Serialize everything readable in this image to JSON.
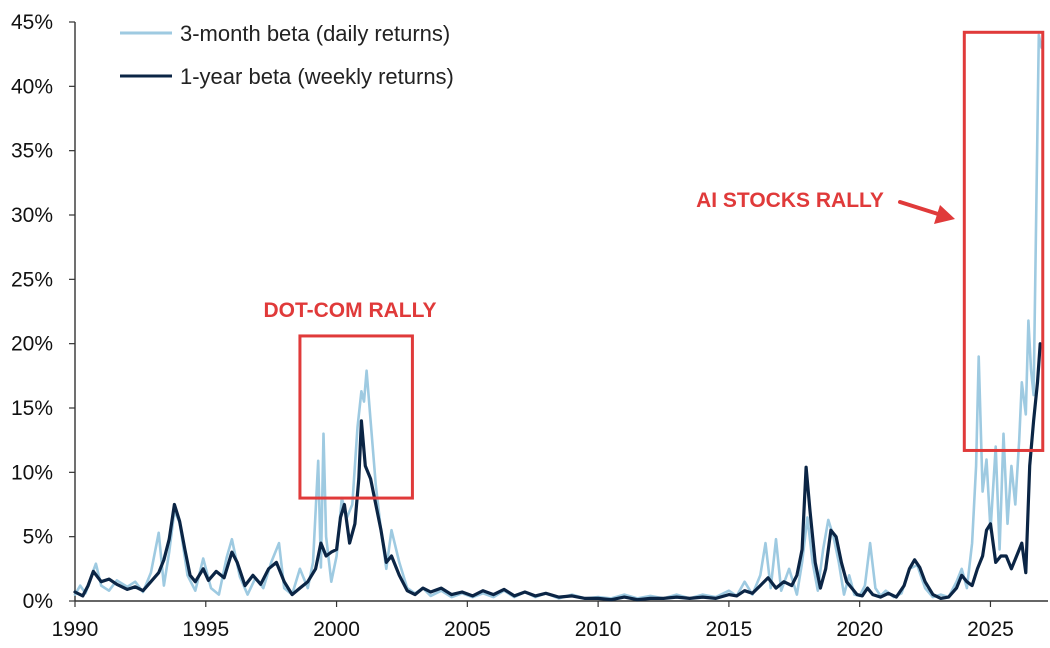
{
  "chart_data": {
    "type": "line",
    "title": "",
    "xlabel": "",
    "ylabel": "",
    "xlim": [
      1990,
      2027.2
    ],
    "ylim": [
      0,
      45
    ],
    "x_ticks": [
      1990,
      1995,
      2000,
      2005,
      2010,
      2015,
      2020,
      2025
    ],
    "x_tick_labels": [
      "1990",
      "1995",
      "2000",
      "2005",
      "2010",
      "2015",
      "2020",
      "2025"
    ],
    "y_ticks": [
      0,
      5,
      10,
      15,
      20,
      25,
      30,
      35,
      40,
      45
    ],
    "y_tick_labels": [
      "0%",
      "5%",
      "10%",
      "15%",
      "20%",
      "25%",
      "30%",
      "35%",
      "40%",
      "45%"
    ],
    "grid": false,
    "legend_position": "top-left",
    "series": [
      {
        "name": "3-month beta (daily returns)",
        "color": "#9ecae1",
        "points": [
          [
            1990.0,
            0.5
          ],
          [
            1990.2,
            1.2
          ],
          [
            1990.4,
            0.6
          ],
          [
            1990.6,
            1.8
          ],
          [
            1990.8,
            2.9
          ],
          [
            1991.0,
            1.2
          ],
          [
            1991.3,
            0.8
          ],
          [
            1991.6,
            1.6
          ],
          [
            1992.0,
            1.1
          ],
          [
            1992.3,
            1.5
          ],
          [
            1992.6,
            0.7
          ],
          [
            1992.9,
            2.2
          ],
          [
            1993.2,
            5.3
          ],
          [
            1993.4,
            1.2
          ],
          [
            1993.6,
            3.8
          ],
          [
            1993.8,
            7.0
          ],
          [
            1994.0,
            6.1
          ],
          [
            1994.3,
            2.0
          ],
          [
            1994.6,
            0.8
          ],
          [
            1994.9,
            3.3
          ],
          [
            1995.2,
            1.0
          ],
          [
            1995.5,
            0.5
          ],
          [
            1995.8,
            3.4
          ],
          [
            1996.0,
            4.8
          ],
          [
            1996.3,
            1.9
          ],
          [
            1996.6,
            0.5
          ],
          [
            1996.9,
            1.8
          ],
          [
            1997.2,
            1.0
          ],
          [
            1997.5,
            3.0
          ],
          [
            1997.8,
            4.5
          ],
          [
            1998.0,
            1.0
          ],
          [
            1998.3,
            0.5
          ],
          [
            1998.6,
            2.5
          ],
          [
            1998.9,
            1.0
          ],
          [
            1999.1,
            3.0
          ],
          [
            1999.3,
            10.9
          ],
          [
            1999.4,
            2.6
          ],
          [
            1999.5,
            13.0
          ],
          [
            1999.6,
            5.0
          ],
          [
            1999.8,
            1.5
          ],
          [
            2000.0,
            3.5
          ],
          [
            2000.2,
            8.0
          ],
          [
            2000.4,
            6.5
          ],
          [
            2000.6,
            7.5
          ],
          [
            2000.8,
            13.5
          ],
          [
            2000.95,
            16.3
          ],
          [
            2001.05,
            15.5
          ],
          [
            2001.15,
            17.9
          ],
          [
            2001.3,
            14.0
          ],
          [
            2001.5,
            9.0
          ],
          [
            2001.7,
            5.5
          ],
          [
            2001.9,
            2.5
          ],
          [
            2002.1,
            5.5
          ],
          [
            2002.4,
            3.0
          ],
          [
            2002.7,
            1.0
          ],
          [
            2003.0,
            0.6
          ],
          [
            2003.3,
            1.0
          ],
          [
            2003.6,
            0.4
          ],
          [
            2004.0,
            0.8
          ],
          [
            2004.4,
            0.3
          ],
          [
            2004.8,
            0.6
          ],
          [
            2005.2,
            0.3
          ],
          [
            2005.6,
            0.6
          ],
          [
            2006.0,
            0.3
          ],
          [
            2006.4,
            0.8
          ],
          [
            2006.8,
            0.3
          ],
          [
            2007.2,
            0.7
          ],
          [
            2007.6,
            0.3
          ],
          [
            2008.0,
            0.6
          ],
          [
            2008.5,
            0.2
          ],
          [
            2009.0,
            0.5
          ],
          [
            2009.5,
            0.2
          ],
          [
            2010.0,
            0.3
          ],
          [
            2010.5,
            0.2
          ],
          [
            2011.0,
            0.5
          ],
          [
            2011.5,
            0.2
          ],
          [
            2012.0,
            0.4
          ],
          [
            2012.5,
            0.2
          ],
          [
            2013.0,
            0.5
          ],
          [
            2013.5,
            0.2
          ],
          [
            2014.0,
            0.5
          ],
          [
            2014.5,
            0.3
          ],
          [
            2015.0,
            0.8
          ],
          [
            2015.3,
            0.4
          ],
          [
            2015.6,
            1.5
          ],
          [
            2015.9,
            0.5
          ],
          [
            2016.2,
            2.0
          ],
          [
            2016.4,
            4.5
          ],
          [
            2016.6,
            1.0
          ],
          [
            2016.8,
            4.8
          ],
          [
            2017.0,
            0.8
          ],
          [
            2017.3,
            2.5
          ],
          [
            2017.6,
            0.5
          ],
          [
            2017.8,
            3.0
          ],
          [
            2018.0,
            6.5
          ],
          [
            2018.2,
            3.0
          ],
          [
            2018.4,
            0.8
          ],
          [
            2018.6,
            4.0
          ],
          [
            2018.8,
            6.3
          ],
          [
            2019.0,
            5.0
          ],
          [
            2019.2,
            3.0
          ],
          [
            2019.4,
            0.5
          ],
          [
            2019.6,
            2.0
          ],
          [
            2019.8,
            0.5
          ],
          [
            2020.0,
            0.4
          ],
          [
            2020.2,
            1.2
          ],
          [
            2020.4,
            4.5
          ],
          [
            2020.6,
            1.0
          ],
          [
            2020.8,
            0.4
          ],
          [
            2021.0,
            0.8
          ],
          [
            2021.3,
            0.3
          ],
          [
            2021.6,
            0.6
          ],
          [
            2021.9,
            2.5
          ],
          [
            2022.2,
            2.8
          ],
          [
            2022.5,
            1.0
          ],
          [
            2022.8,
            0.3
          ],
          [
            2023.1,
            0.5
          ],
          [
            2023.4,
            0.3
          ],
          [
            2023.7,
            1.5
          ],
          [
            2023.9,
            2.5
          ],
          [
            2024.1,
            1.0
          ],
          [
            2024.3,
            4.5
          ],
          [
            2024.45,
            10.5
          ],
          [
            2024.55,
            19.0
          ],
          [
            2024.7,
            8.5
          ],
          [
            2024.85,
            11.0
          ],
          [
            2025.0,
            5.5
          ],
          [
            2025.2,
            12.0
          ],
          [
            2025.35,
            4.0
          ],
          [
            2025.5,
            13.0
          ],
          [
            2025.65,
            6.0
          ],
          [
            2025.8,
            10.5
          ],
          [
            2025.95,
            7.5
          ],
          [
            2026.1,
            12.5
          ],
          [
            2026.2,
            17.0
          ],
          [
            2026.35,
            14.5
          ],
          [
            2026.45,
            21.8
          ],
          [
            2026.55,
            18.0
          ],
          [
            2026.65,
            16.0
          ],
          [
            2026.75,
            30.0
          ],
          [
            2026.85,
            44.0
          ],
          [
            2026.95,
            43.0
          ]
        ]
      },
      {
        "name": "1-year beta (weekly returns)",
        "color": "#0b2545",
        "points": [
          [
            1990.0,
            0.7
          ],
          [
            1990.3,
            0.4
          ],
          [
            1990.5,
            1.2
          ],
          [
            1990.7,
            2.3
          ],
          [
            1991.0,
            1.5
          ],
          [
            1991.3,
            1.7
          ],
          [
            1991.6,
            1.3
          ],
          [
            1992.0,
            0.9
          ],
          [
            1992.3,
            1.1
          ],
          [
            1992.6,
            0.8
          ],
          [
            1992.9,
            1.5
          ],
          [
            1993.2,
            2.2
          ],
          [
            1993.4,
            3.2
          ],
          [
            1993.6,
            4.8
          ],
          [
            1993.8,
            7.5
          ],
          [
            1994.0,
            6.2
          ],
          [
            1994.2,
            4.0
          ],
          [
            1994.4,
            2.0
          ],
          [
            1994.6,
            1.5
          ],
          [
            1994.9,
            2.5
          ],
          [
            1995.1,
            1.6
          ],
          [
            1995.4,
            2.3
          ],
          [
            1995.7,
            1.8
          ],
          [
            1996.0,
            3.8
          ],
          [
            1996.2,
            3.0
          ],
          [
            1996.5,
            1.2
          ],
          [
            1996.8,
            2.0
          ],
          [
            1997.1,
            1.3
          ],
          [
            1997.4,
            2.5
          ],
          [
            1997.7,
            3.0
          ],
          [
            1998.0,
            1.5
          ],
          [
            1998.3,
            0.5
          ],
          [
            1998.6,
            1.0
          ],
          [
            1998.9,
            1.5
          ],
          [
            1999.2,
            2.5
          ],
          [
            1999.4,
            4.5
          ],
          [
            1999.6,
            3.5
          ],
          [
            1999.8,
            3.8
          ],
          [
            2000.0,
            4.0
          ],
          [
            2000.15,
            6.5
          ],
          [
            2000.3,
            7.5
          ],
          [
            2000.5,
            4.5
          ],
          [
            2000.7,
            6.0
          ],
          [
            2000.85,
            9.5
          ],
          [
            2000.95,
            14.0
          ],
          [
            2001.1,
            10.5
          ],
          [
            2001.3,
            9.5
          ],
          [
            2001.5,
            7.5
          ],
          [
            2001.7,
            5.5
          ],
          [
            2001.9,
            3.0
          ],
          [
            2002.1,
            3.5
          ],
          [
            2002.4,
            2.0
          ],
          [
            2002.7,
            0.8
          ],
          [
            2003.0,
            0.5
          ],
          [
            2003.3,
            1.0
          ],
          [
            2003.6,
            0.7
          ],
          [
            2004.0,
            1.0
          ],
          [
            2004.4,
            0.5
          ],
          [
            2004.8,
            0.7
          ],
          [
            2005.2,
            0.4
          ],
          [
            2005.6,
            0.8
          ],
          [
            2006.0,
            0.5
          ],
          [
            2006.4,
            0.9
          ],
          [
            2006.8,
            0.4
          ],
          [
            2007.2,
            0.7
          ],
          [
            2007.6,
            0.4
          ],
          [
            2008.0,
            0.6
          ],
          [
            2008.5,
            0.3
          ],
          [
            2009.0,
            0.4
          ],
          [
            2009.5,
            0.2
          ],
          [
            2010.0,
            0.2
          ],
          [
            2010.5,
            0.1
          ],
          [
            2011.0,
            0.3
          ],
          [
            2011.5,
            0.1
          ],
          [
            2012.0,
            0.2
          ],
          [
            2012.5,
            0.2
          ],
          [
            2013.0,
            0.3
          ],
          [
            2013.5,
            0.2
          ],
          [
            2014.0,
            0.3
          ],
          [
            2014.5,
            0.2
          ],
          [
            2015.0,
            0.5
          ],
          [
            2015.3,
            0.4
          ],
          [
            2015.6,
            0.8
          ],
          [
            2015.9,
            0.6
          ],
          [
            2016.2,
            1.2
          ],
          [
            2016.5,
            1.8
          ],
          [
            2016.8,
            1.0
          ],
          [
            2017.1,
            1.5
          ],
          [
            2017.4,
            1.2
          ],
          [
            2017.6,
            2.0
          ],
          [
            2017.8,
            4.0
          ],
          [
            2017.95,
            10.4
          ],
          [
            2018.1,
            7.0
          ],
          [
            2018.3,
            3.0
          ],
          [
            2018.5,
            1.0
          ],
          [
            2018.7,
            2.5
          ],
          [
            2018.9,
            5.5
          ],
          [
            2019.1,
            5.0
          ],
          [
            2019.3,
            3.0
          ],
          [
            2019.5,
            1.5
          ],
          [
            2019.7,
            1.0
          ],
          [
            2019.9,
            0.5
          ],
          [
            2020.1,
            0.4
          ],
          [
            2020.3,
            1.0
          ],
          [
            2020.5,
            0.5
          ],
          [
            2020.8,
            0.3
          ],
          [
            2021.1,
            0.6
          ],
          [
            2021.4,
            0.3
          ],
          [
            2021.7,
            1.2
          ],
          [
            2021.9,
            2.5
          ],
          [
            2022.1,
            3.2
          ],
          [
            2022.3,
            2.6
          ],
          [
            2022.5,
            1.5
          ],
          [
            2022.8,
            0.5
          ],
          [
            2023.1,
            0.2
          ],
          [
            2023.4,
            0.3
          ],
          [
            2023.7,
            1.0
          ],
          [
            2023.9,
            2.0
          ],
          [
            2024.1,
            1.5
          ],
          [
            2024.3,
            1.2
          ],
          [
            2024.5,
            2.5
          ],
          [
            2024.7,
            3.5
          ],
          [
            2024.85,
            5.5
          ],
          [
            2025.0,
            6.0
          ],
          [
            2025.2,
            3.0
          ],
          [
            2025.4,
            3.5
          ],
          [
            2025.6,
            3.5
          ],
          [
            2025.8,
            2.5
          ],
          [
            2026.0,
            3.5
          ],
          [
            2026.2,
            4.5
          ],
          [
            2026.35,
            2.2
          ],
          [
            2026.5,
            10.5
          ],
          [
            2026.65,
            14.0
          ],
          [
            2026.8,
            17.0
          ],
          [
            2026.9,
            20.0
          ],
          [
            2026.95,
            19.8
          ]
        ]
      }
    ],
    "annotations": [
      {
        "label": "DOT-COM RALLY",
        "color": "#e03a3a",
        "box_x": [
          1998.6,
          2002.9
        ],
        "box_y": [
          8,
          20.6
        ]
      },
      {
        "label": "AI STOCKS RALLY",
        "color": "#e03a3a",
        "box_x": [
          2024.0,
          2027.0
        ],
        "box_y": [
          11.7,
          44.2
        ],
        "arrow": true
      }
    ]
  }
}
